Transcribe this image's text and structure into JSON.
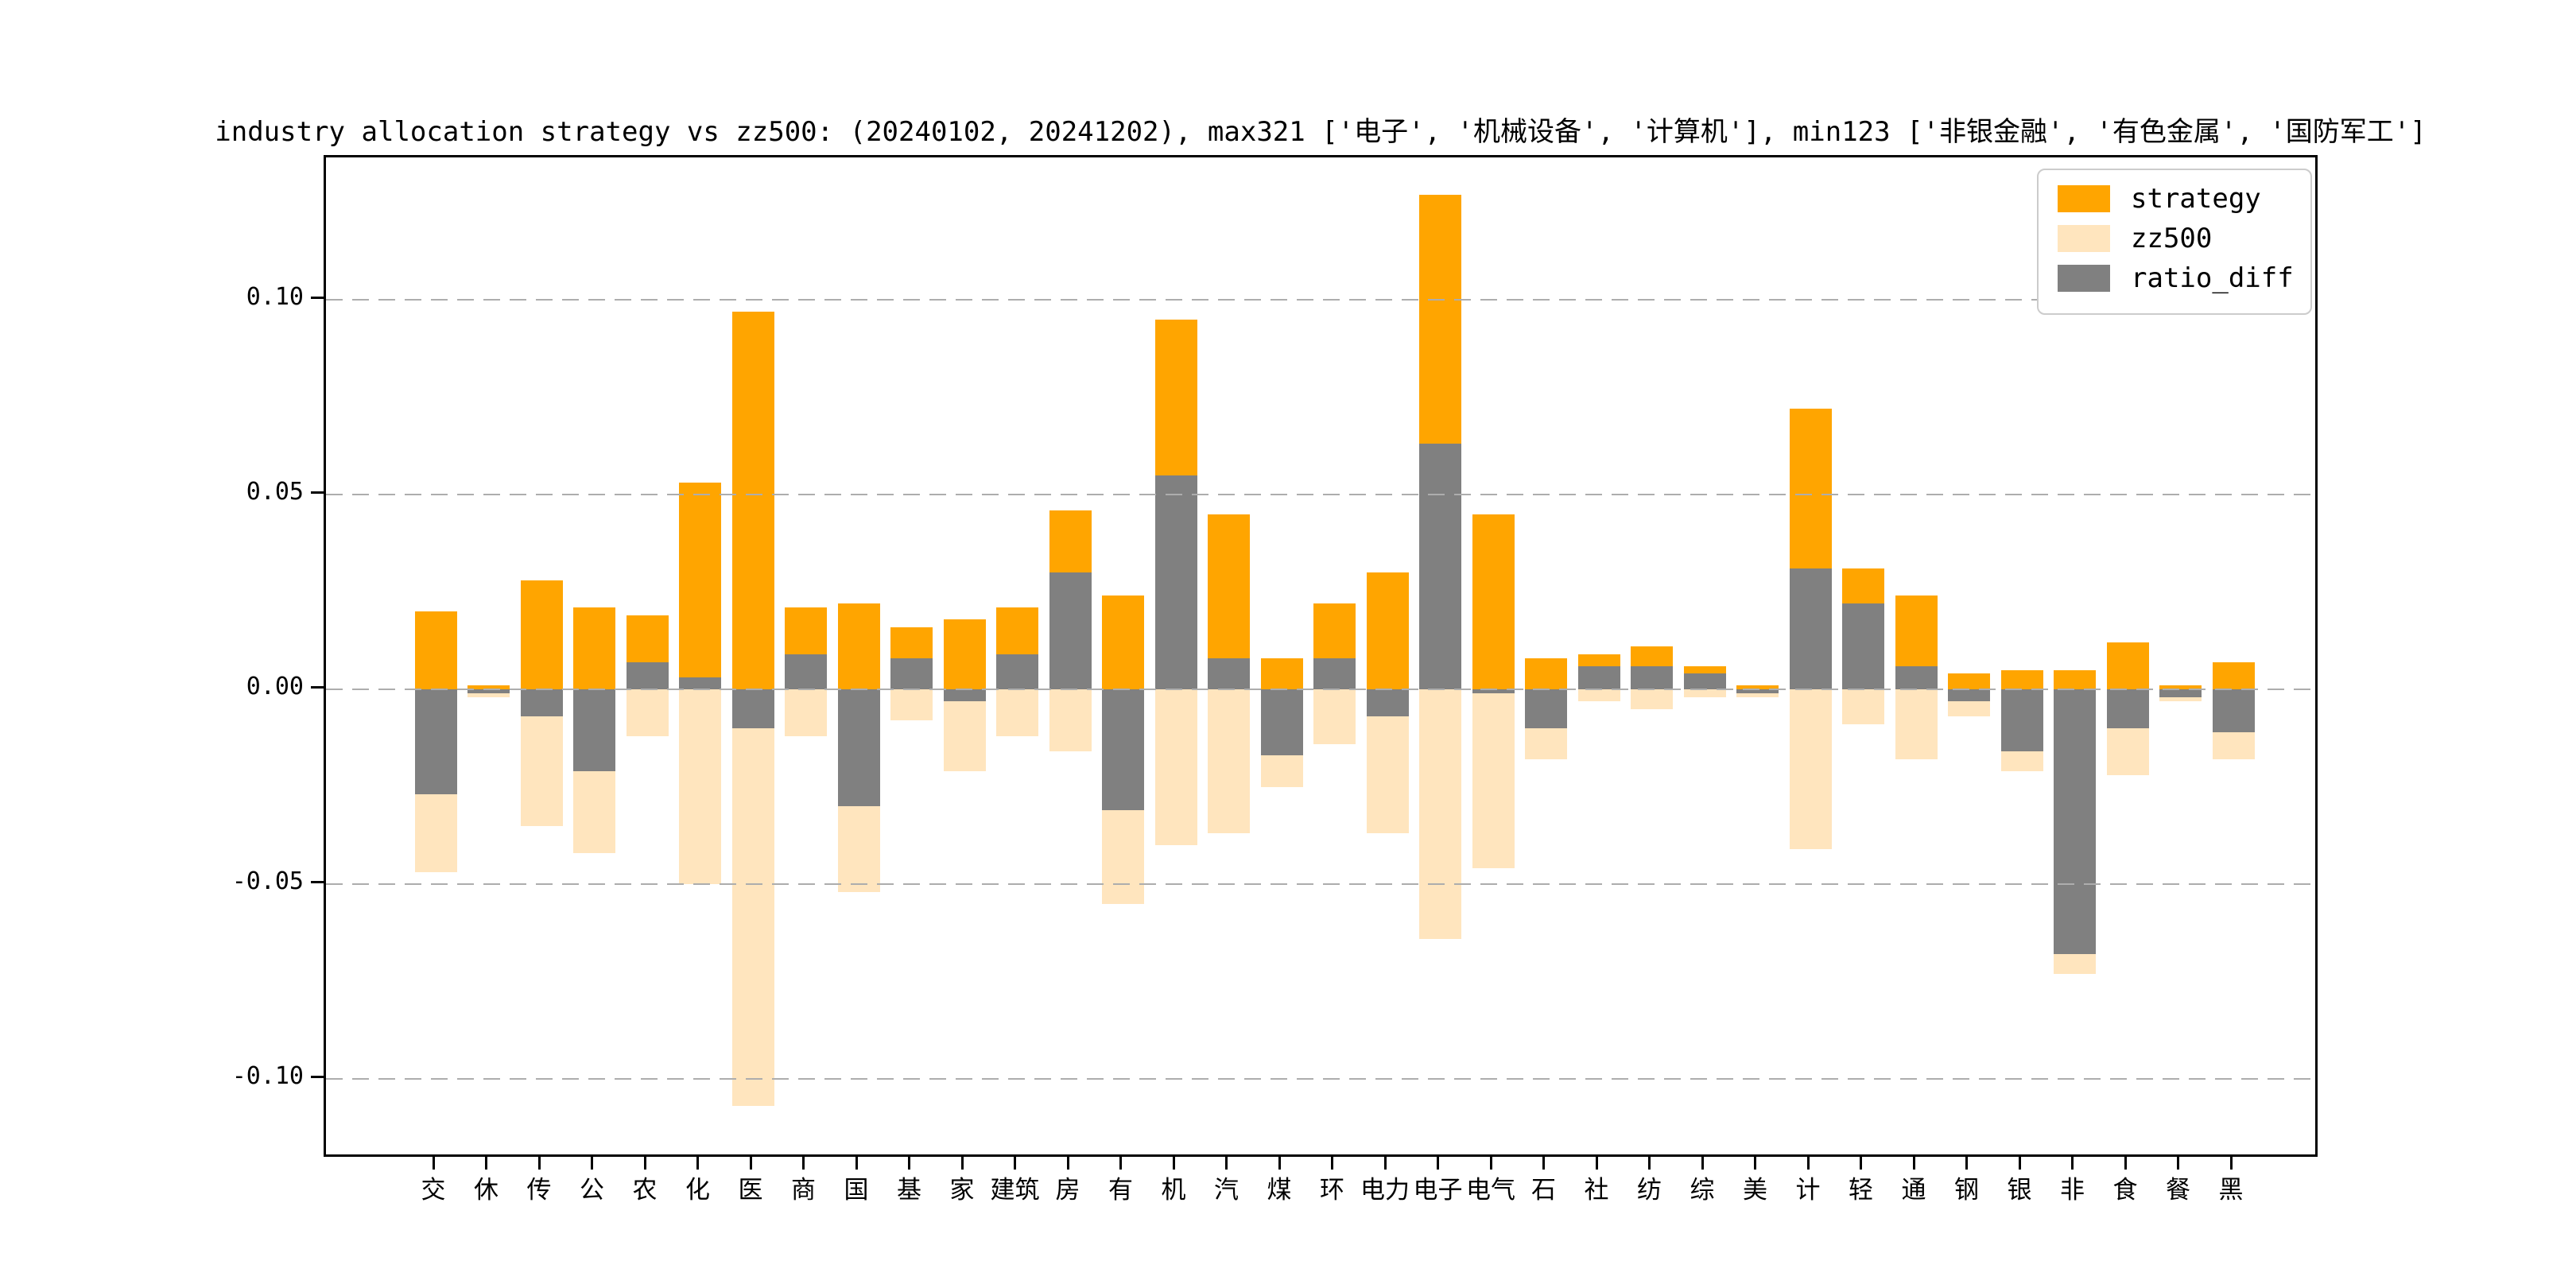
{
  "figure": {
    "background": "#FFFFFF"
  },
  "chart_data": {
    "type": "bar",
    "title": "industry allocation strategy vs zz500: (20240102, 20241202), max321 ['电子', '机械设备', '计算机'], min123 ['非银金融', '有色金属', '国防军工']",
    "categories": [
      "交",
      "休",
      "传",
      "公",
      "农",
      "化",
      "医",
      "商",
      "国",
      "基",
      "家",
      "建筑",
      "房",
      "有",
      "机",
      "汽",
      "煤",
      "环",
      "电力",
      "电子",
      "电气",
      "石",
      "社",
      "纺",
      "综",
      "美",
      "计",
      "轻",
      "通",
      "钢",
      "银",
      "非",
      "食",
      "餐",
      "黑"
    ],
    "series": [
      {
        "name": "strategy",
        "color": "#FFA500",
        "values": [
          0.02,
          0.001,
          0.028,
          0.021,
          0.019,
          0.053,
          0.097,
          0.021,
          0.022,
          0.016,
          0.018,
          0.021,
          0.046,
          0.024,
          0.095,
          0.045,
          0.008,
          0.022,
          0.03,
          0.127,
          0.045,
          0.008,
          0.009,
          0.011,
          0.006,
          0.001,
          0.072,
          0.031,
          0.024,
          0.004,
          0.005,
          0.005,
          0.012,
          0.001,
          0.007
        ]
      },
      {
        "name": "zz500",
        "color": "#FFE5BE",
        "plotted_as_negative": true,
        "values": [
          -0.047,
          -0.002,
          -0.035,
          -0.042,
          -0.012,
          -0.05,
          -0.107,
          -0.012,
          -0.052,
          -0.008,
          -0.021,
          -0.012,
          -0.016,
          -0.055,
          -0.04,
          -0.037,
          -0.025,
          -0.014,
          -0.037,
          -0.064,
          -0.046,
          -0.018,
          -0.003,
          -0.005,
          -0.002,
          -0.002,
          -0.041,
          -0.009,
          -0.018,
          -0.007,
          -0.021,
          -0.073,
          -0.022,
          -0.003,
          -0.018
        ]
      },
      {
        "name": "ratio_diff",
        "color": "#808080",
        "values": [
          -0.027,
          -0.001,
          -0.007,
          -0.021,
          0.007,
          0.003,
          -0.01,
          0.009,
          -0.03,
          0.008,
          -0.003,
          0.009,
          0.03,
          -0.031,
          0.055,
          0.008,
          -0.017,
          0.008,
          -0.007,
          0.063,
          -0.001,
          -0.01,
          0.006,
          0.006,
          0.004,
          -0.001,
          0.031,
          0.022,
          0.006,
          -0.003,
          -0.016,
          -0.068,
          -0.01,
          -0.002,
          -0.011
        ]
      }
    ],
    "xlabel": "",
    "ylabel": "",
    "y_ticks": {
      "labels": [
        "0.10",
        "0.05",
        "0.00",
        "-0.05",
        "-0.10"
      ],
      "values": [
        0.1,
        0.05,
        0.0,
        -0.05,
        -0.1
      ]
    },
    "ylim": [
      -0.1206,
      0.1365
    ],
    "grid": {
      "axis": "y",
      "style": "dashed",
      "color": "#ADADAD",
      "above_bars": true
    },
    "legend": {
      "position": "upper right",
      "entries": [
        "strategy",
        "zz500",
        "ratio_diff"
      ]
    }
  }
}
